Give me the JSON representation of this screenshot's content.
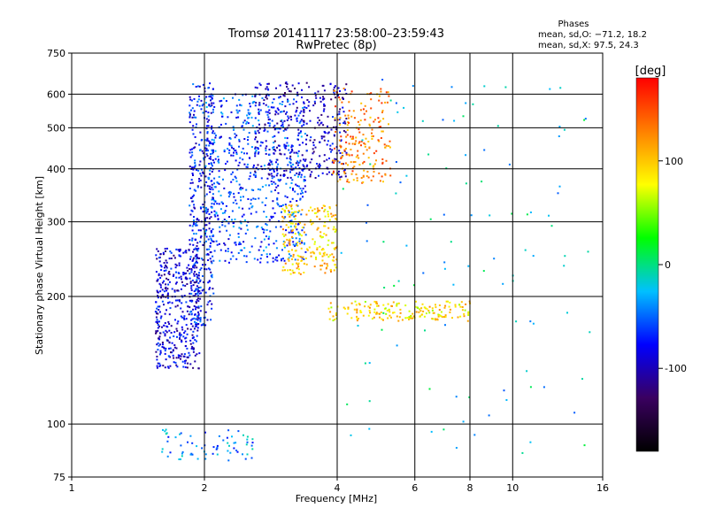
{
  "header": {
    "title": "Tromsø 20141117 23:58:00–23:59:43",
    "subtitle": "RwPretec (8p)"
  },
  "stats": {
    "heading": "Phases",
    "line_o": "mean, sd,O: −71.2, 18.2",
    "line_x": "mean, sd,X:  97.5, 24.3"
  },
  "colorbar": {
    "label": "[deg]",
    "ticks": [
      100,
      0,
      -100
    ],
    "range": [
      -180,
      180
    ],
    "stops": [
      "#000000",
      "#3a0060",
      "#0000ff",
      "#00c0ff",
      "#00ff00",
      "#ffff00",
      "#ff8000",
      "#ff0000"
    ]
  },
  "chart_data": {
    "type": "scatter",
    "title": "Tromsø 20141117 23:58:00–23:59:43",
    "subtitle": "RwPretec (8p)",
    "xlabel": "Frequency [MHz]",
    "ylabel": "Stationary phase Virtual Height [km]",
    "xscale": "log",
    "yscale": "log",
    "xlim": [
      1,
      16
    ],
    "ylim": [
      75,
      750
    ],
    "xticks": [
      1,
      2,
      4,
      6,
      8,
      10,
      16
    ],
    "yticks": [
      75,
      100,
      200,
      300,
      400,
      500,
      600,
      750
    ],
    "x_gridlines": [
      2,
      4,
      6,
      8,
      10
    ],
    "y_gridlines": [
      100,
      200,
      300,
      400,
      500,
      600
    ],
    "color_variable": "phase [deg]",
    "clusters": [
      {
        "name": "O-trace low band",
        "f_min": 1.55,
        "f_max": 1.95,
        "h_min": 135,
        "h_max": 260,
        "phase": -90,
        "n": 420
      },
      {
        "name": "O-trace low column",
        "f_min": 1.85,
        "f_max": 2.1,
        "h_min": 170,
        "h_max": 640,
        "phase": -75,
        "n": 380
      },
      {
        "name": "F-layer spread",
        "f_min": 2.0,
        "f_max": 3.4,
        "h_min": 240,
        "h_max": 600,
        "phase": -60,
        "n": 650
      },
      {
        "name": "F-layer upper",
        "f_min": 2.6,
        "f_max": 4.2,
        "h_min": 380,
        "h_max": 640,
        "phase": -95,
        "n": 360
      },
      {
        "name": "X-trace spur",
        "f_min": 3.0,
        "f_max": 4.0,
        "h_min": 225,
        "h_max": 330,
        "phase": 100,
        "n": 220
      },
      {
        "name": "X-trace rising",
        "f_min": 3.9,
        "f_max": 5.3,
        "h_min": 370,
        "h_max": 620,
        "phase": 130,
        "n": 200
      },
      {
        "name": "E-layer echoes",
        "f_min": 3.8,
        "f_max": 8.0,
        "h_min": 175,
        "h_max": 195,
        "phase": 90,
        "n": 180
      },
      {
        "name": "Low-height echoes",
        "f_min": 1.6,
        "f_max": 2.6,
        "h_min": 82,
        "h_max": 97,
        "phase": -40,
        "n": 70
      },
      {
        "name": "Scattered noise",
        "f_min": 4.0,
        "f_max": 15.0,
        "h_min": 85,
        "h_max": 650,
        "phase": -20,
        "n": 110
      }
    ]
  }
}
